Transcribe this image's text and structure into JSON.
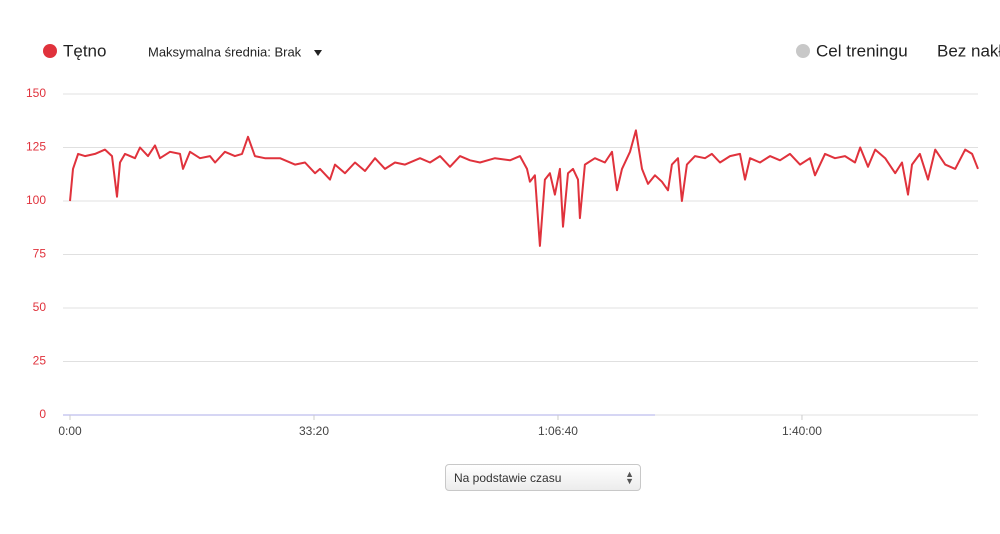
{
  "chart_data": {
    "type": "line",
    "series": [
      {
        "name": "Tętno",
        "color": "#e0323c",
        "values": [
          100,
          115,
          122,
          121,
          122,
          124,
          121,
          102,
          118,
          122,
          120,
          125,
          121,
          126,
          120,
          123,
          122,
          115,
          123,
          120,
          121,
          118,
          123,
          121,
          122,
          130,
          121,
          120,
          120,
          117,
          118,
          113,
          115,
          110,
          117,
          113,
          118,
          114,
          120,
          115,
          118,
          117,
          120,
          118,
          121,
          116,
          121,
          119,
          118,
          120,
          119,
          121,
          115,
          109,
          112,
          79,
          110,
          113,
          103,
          115,
          88,
          113,
          115,
          110,
          92,
          117,
          120,
          118,
          123,
          105,
          115,
          123,
          133,
          115,
          108,
          112,
          109,
          105,
          117,
          120,
          100,
          117,
          121,
          120,
          122,
          118,
          121,
          122,
          110,
          120,
          118,
          121,
          119,
          122,
          117,
          120,
          112,
          122,
          120,
          121,
          118,
          125,
          116,
          124,
          120,
          113,
          118,
          103,
          117,
          122,
          110,
          124,
          117,
          115,
          124,
          122,
          115
        ]
      }
    ],
    "x": [
      0,
      25,
      66,
      123,
      205,
      287,
      344,
      385,
      410,
      451,
      533,
      574,
      639,
      697,
      738,
      820,
      902,
      926,
      984,
      1066,
      1148,
      1189,
      1270,
      1352,
      1410,
      1459,
      1516,
      1598,
      1721,
      1844,
      1926,
      2008,
      2049,
      2131,
      2172,
      2254,
      2336,
      2418,
      2500,
      2582,
      2664,
      2746,
      2869,
      2951,
      3033,
      3115,
      3197,
      3279,
      3361,
      3484,
      3607,
      3689,
      3746,
      3770,
      3811,
      3852,
      3893,
      3934,
      3975,
      4016,
      4041,
      4082,
      4123,
      4164,
      4180,
      4221,
      4303,
      4385,
      4443,
      4484,
      4525,
      4590,
      4639,
      4689,
      4738,
      4795,
      4852,
      4902,
      4934,
      4984,
      5016,
      5057,
      5123,
      5205,
      5262,
      5328,
      5410,
      5492,
      5533,
      5574,
      5656,
      5738,
      5820,
      5902,
      5984,
      6066,
      6107,
      6189,
      6271,
      6353,
      6435,
      6477,
      6541,
      6600,
      6682,
      6764,
      6820,
      6869,
      6902,
      6967,
      7033,
      7092,
      7174,
      7256,
      7338,
      7395,
      7443
    ],
    "xlim": [
      0,
      7443
    ],
    "xticks": [
      {
        "value": 0,
        "label": "0:00"
      },
      {
        "value": 2000,
        "label": "33:20"
      },
      {
        "value": 4000,
        "label": "1:06:40"
      },
      {
        "value": 6000,
        "label": "1:40:00"
      }
    ],
    "ylim": [
      0,
      150
    ],
    "yticks": [
      0,
      25,
      50,
      75,
      100,
      125,
      150
    ],
    "grid": true
  },
  "controls": {
    "average": "Maksymalna średnia: Brak",
    "target": "Cel treningu",
    "target_value": "Bez nakł",
    "basis": "Na podstawie czasu"
  }
}
